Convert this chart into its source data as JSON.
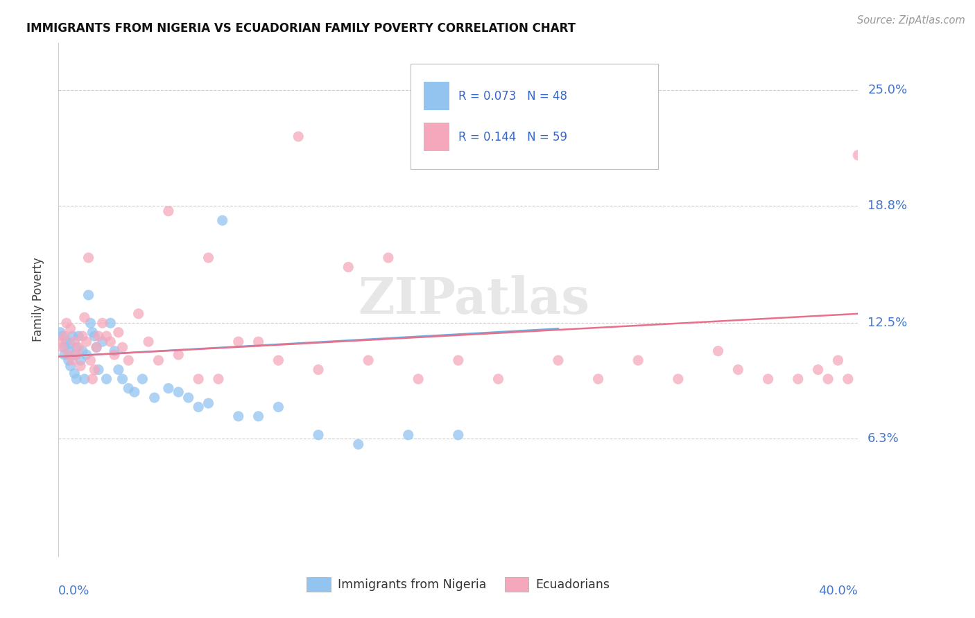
{
  "title": "IMMIGRANTS FROM NIGERIA VS ECUADORIAN FAMILY POVERTY CORRELATION CHART",
  "source": "Source: ZipAtlas.com",
  "ylabel": "Family Poverty",
  "ytick_vals": [
    0.063,
    0.125,
    0.188,
    0.25
  ],
  "ytick_labels": [
    "6.3%",
    "12.5%",
    "18.8%",
    "25.0%"
  ],
  "xlim": [
    0.0,
    0.4
  ],
  "ylim": [
    0.0,
    0.275
  ],
  "legend_text1": "R = 0.073   N = 48",
  "legend_text2": "R = 0.144   N = 59",
  "series1_color": "#93c4f0",
  "series2_color": "#f5a8bc",
  "line1_color": "#6aaee0",
  "line2_color": "#e8708a",
  "watermark": "ZIPatlas",
  "background_color": "#ffffff",
  "legend_label1": "Immigrants from Nigeria",
  "legend_label2": "Ecuadorians",
  "series1_x": [
    0.001,
    0.002,
    0.003,
    0.003,
    0.004,
    0.005,
    0.005,
    0.006,
    0.006,
    0.007,
    0.008,
    0.008,
    0.009,
    0.009,
    0.01,
    0.011,
    0.012,
    0.013,
    0.014,
    0.015,
    0.016,
    0.017,
    0.018,
    0.019,
    0.02,
    0.022,
    0.024,
    0.026,
    0.028,
    0.03,
    0.032,
    0.035,
    0.038,
    0.042,
    0.048,
    0.055,
    0.06,
    0.065,
    0.07,
    0.075,
    0.082,
    0.09,
    0.1,
    0.11,
    0.13,
    0.15,
    0.175,
    0.2
  ],
  "series1_y": [
    0.12,
    0.118,
    0.112,
    0.108,
    0.115,
    0.11,
    0.105,
    0.114,
    0.102,
    0.118,
    0.108,
    0.098,
    0.112,
    0.095,
    0.118,
    0.105,
    0.11,
    0.095,
    0.108,
    0.14,
    0.125,
    0.12,
    0.118,
    0.112,
    0.1,
    0.115,
    0.095,
    0.125,
    0.11,
    0.1,
    0.095,
    0.09,
    0.088,
    0.095,
    0.085,
    0.09,
    0.088,
    0.085,
    0.08,
    0.082,
    0.18,
    0.075,
    0.075,
    0.08,
    0.065,
    0.06,
    0.065,
    0.065
  ],
  "series2_x": [
    0.001,
    0.002,
    0.003,
    0.004,
    0.005,
    0.006,
    0.007,
    0.008,
    0.009,
    0.01,
    0.011,
    0.012,
    0.013,
    0.014,
    0.015,
    0.016,
    0.017,
    0.018,
    0.019,
    0.02,
    0.022,
    0.024,
    0.026,
    0.028,
    0.03,
    0.032,
    0.035,
    0.04,
    0.045,
    0.05,
    0.055,
    0.06,
    0.07,
    0.075,
    0.08,
    0.09,
    0.1,
    0.11,
    0.12,
    0.13,
    0.145,
    0.155,
    0.165,
    0.18,
    0.2,
    0.22,
    0.25,
    0.27,
    0.29,
    0.31,
    0.33,
    0.34,
    0.355,
    0.37,
    0.38,
    0.385,
    0.39,
    0.395,
    0.4
  ],
  "series2_y": [
    0.115,
    0.112,
    0.118,
    0.125,
    0.108,
    0.122,
    0.105,
    0.115,
    0.108,
    0.112,
    0.102,
    0.118,
    0.128,
    0.115,
    0.16,
    0.105,
    0.095,
    0.1,
    0.112,
    0.118,
    0.125,
    0.118,
    0.115,
    0.108,
    0.12,
    0.112,
    0.105,
    0.13,
    0.115,
    0.105,
    0.185,
    0.108,
    0.095,
    0.16,
    0.095,
    0.115,
    0.115,
    0.105,
    0.225,
    0.1,
    0.155,
    0.105,
    0.16,
    0.095,
    0.105,
    0.095,
    0.105,
    0.095,
    0.105,
    0.095,
    0.11,
    0.1,
    0.095,
    0.095,
    0.1,
    0.095,
    0.105,
    0.095,
    0.215
  ]
}
